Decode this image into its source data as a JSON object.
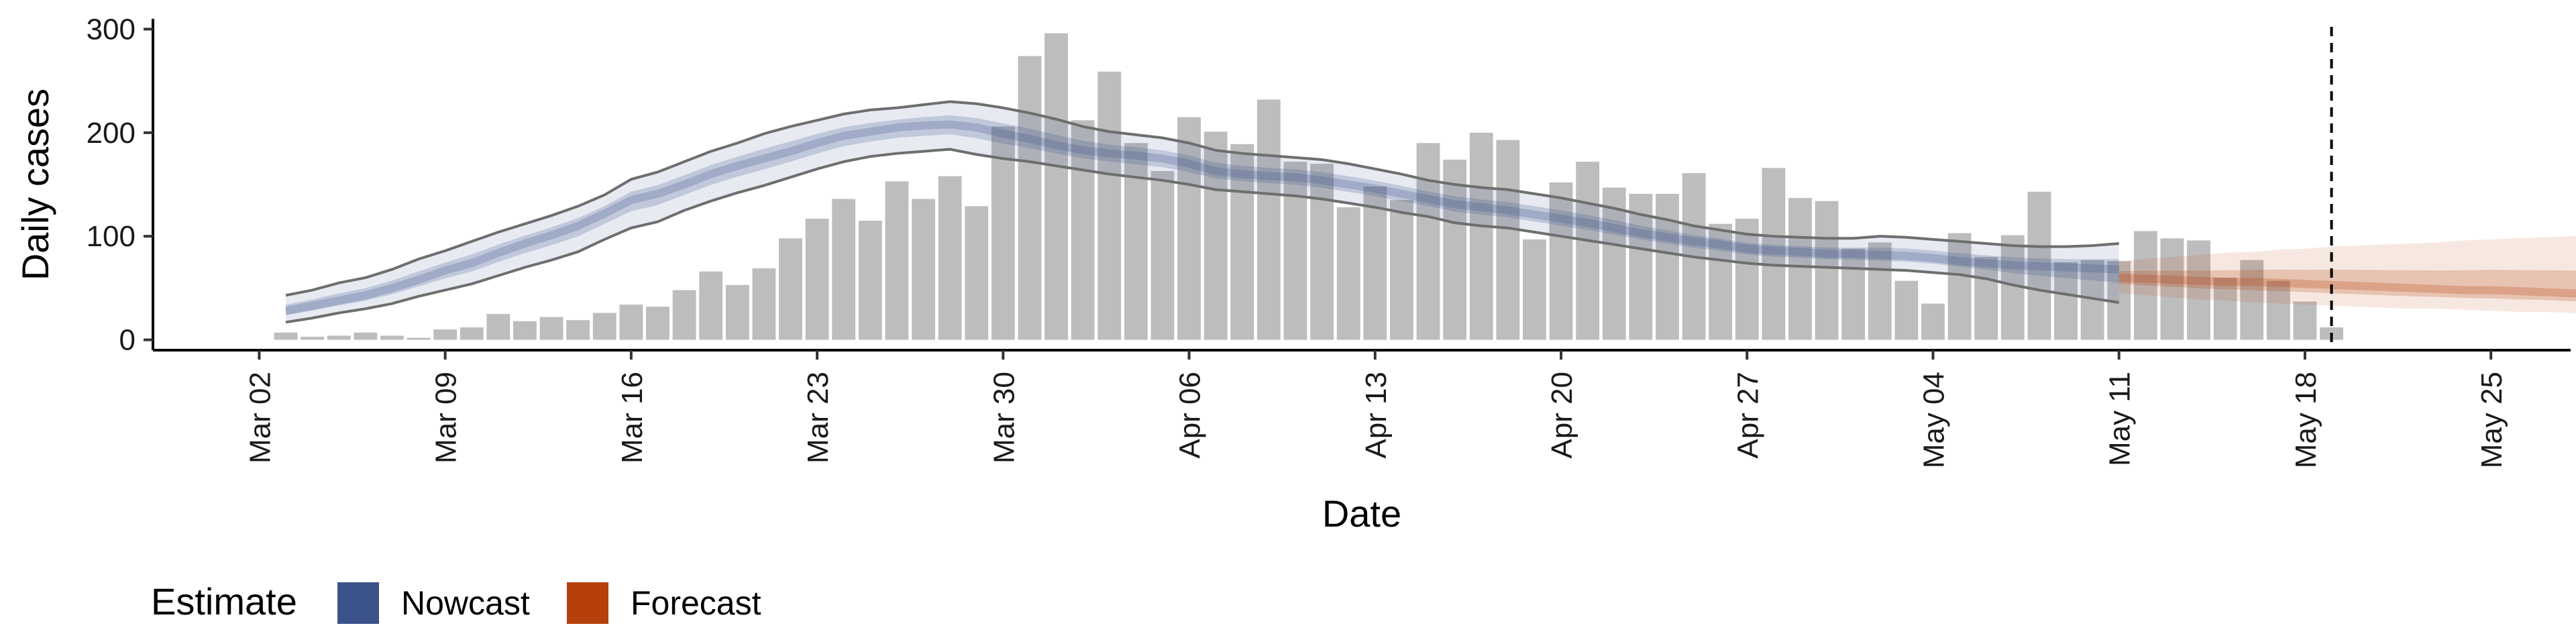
{
  "chart_data": {
    "type": "bar",
    "xlabel": "Date",
    "ylabel": "Daily cases",
    "ylim": [
      -10,
      310
    ],
    "yticks": [
      0,
      100,
      200,
      300
    ],
    "xlim": [
      "2020-02-27",
      "2020-05-28"
    ],
    "xticks": [
      "2020-03-02",
      "2020-03-09",
      "2020-03-16",
      "2020-03-23",
      "2020-03-30",
      "2020-04-06",
      "2020-04-13",
      "2020-04-20",
      "2020-04-27",
      "2020-05-04",
      "2020-05-11",
      "2020-05-18",
      "2020-05-25"
    ],
    "xtick_labels": [
      "Mar 02",
      "Mar 09",
      "Mar 16",
      "Mar 23",
      "Mar 30",
      "Apr 06",
      "Apr 13",
      "Apr 20",
      "Apr 27",
      "May 04",
      "May 11",
      "May 18",
      "May 25"
    ],
    "grid": false,
    "legend_position": "bottom-left",
    "colors": {
      "bars": "#bdbdbd",
      "nowcast": "#3b528b",
      "forecast": "#b5400b",
      "outer_lines": "#6e6e6e",
      "reference_line": "#000000"
    },
    "bars": {
      "start_date": "2020-03-03",
      "values": [
        7,
        3,
        4,
        7,
        4,
        2,
        10,
        12,
        25,
        18,
        22,
        19,
        26,
        34,
        32,
        48,
        66,
        53,
        69,
        98,
        117,
        136,
        115,
        153,
        136,
        158,
        129,
        206,
        274,
        296,
        212,
        259,
        190,
        163,
        215,
        201,
        189,
        232,
        172,
        170,
        128,
        148,
        135,
        190,
        174,
        200,
        193,
        97,
        152,
        172,
        147,
        141,
        141,
        161,
        112,
        117,
        166,
        137,
        134,
        88,
        94,
        57,
        35,
        103,
        80,
        101,
        143,
        75,
        77,
        76,
        105,
        98,
        96,
        60,
        77,
        57,
        37,
        12
      ]
    },
    "nowcast": {
      "start_date": "2020-03-03",
      "median": [
        28,
        33,
        38,
        43,
        50,
        58,
        67,
        74,
        84,
        93,
        101,
        110,
        122,
        135,
        141,
        150,
        160,
        168,
        175,
        182,
        190,
        197,
        201,
        205,
        207,
        208,
        205,
        199,
        194,
        188,
        183,
        180,
        178,
        175,
        170,
        163,
        160,
        158,
        157,
        154,
        150,
        146,
        141,
        136,
        131,
        128,
        125,
        121,
        117,
        113,
        108,
        103,
        99,
        95,
        92,
        88,
        86,
        85,
        83,
        83,
        82,
        81,
        79,
        76,
        74,
        72,
        71,
        70,
        69,
        68
      ],
      "lower_90": [
        17,
        21,
        26,
        30,
        35,
        42,
        48,
        54,
        62,
        70,
        77,
        85,
        97,
        108,
        114,
        125,
        134,
        142,
        149,
        157,
        165,
        172,
        177,
        180,
        182,
        184,
        179,
        175,
        172,
        168,
        164,
        160,
        157,
        154,
        150,
        145,
        143,
        141,
        139,
        136,
        132,
        128,
        123,
        119,
        113,
        110,
        108,
        104,
        100,
        96,
        92,
        88,
        84,
        80,
        77,
        74,
        72,
        71,
        70,
        69,
        68,
        67,
        65,
        63,
        59,
        53,
        48,
        44,
        40,
        36
      ],
      "upper_90": [
        43,
        48,
        55,
        60,
        68,
        78,
        86,
        95,
        104,
        112,
        120,
        129,
        140,
        155,
        162,
        172,
        182,
        190,
        199,
        206,
        212,
        218,
        222,
        224,
        227,
        230,
        228,
        224,
        219,
        213,
        206,
        201,
        198,
        195,
        190,
        183,
        180,
        178,
        176,
        174,
        170,
        165,
        160,
        154,
        150,
        147,
        145,
        141,
        137,
        132,
        127,
        121,
        116,
        110,
        106,
        102,
        100,
        99,
        98,
        98,
        100,
        99,
        97,
        95,
        93,
        91,
        90,
        90,
        91,
        93
      ]
    },
    "forecast": {
      "start_date": "2020-05-11",
      "median": [
        60,
        59,
        58,
        57,
        56,
        56,
        55,
        54,
        53,
        52,
        51,
        50,
        49,
        48,
        48,
        47,
        46,
        45,
        44,
        44,
        43,
        42,
        42,
        41
      ],
      "lower_90": [
        45,
        43,
        41,
        39,
        38,
        36,
        35,
        34,
        33,
        32,
        31,
        30,
        30,
        29,
        28,
        27,
        27,
        26,
        25,
        25,
        24,
        24,
        23,
        23
      ],
      "upper_90": [
        76,
        78,
        80,
        82,
        84,
        85,
        87,
        88,
        90,
        91,
        92,
        93,
        94,
        96,
        97,
        98,
        99,
        100,
        101,
        102,
        103,
        104,
        105,
        106
      ]
    },
    "reference_date": "2020-05-19"
  },
  "legend": {
    "title": "Estimate",
    "items": [
      {
        "label": "Nowcast",
        "color": "#3b528b"
      },
      {
        "label": "Forecast",
        "color": "#b5400b"
      }
    ]
  }
}
